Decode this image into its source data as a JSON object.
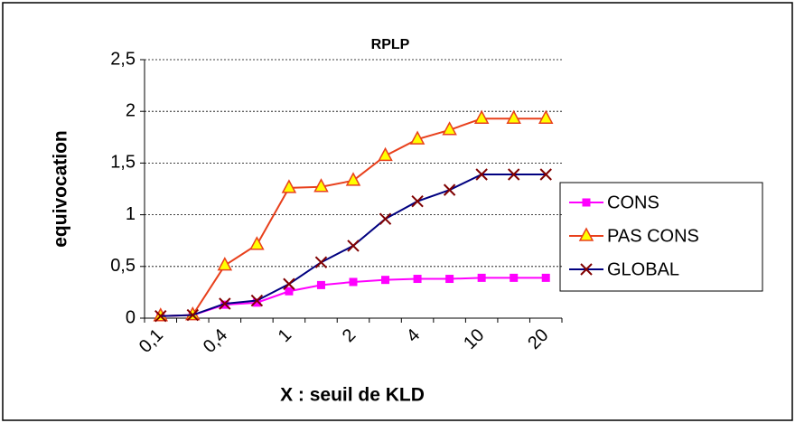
{
  "chart_data": {
    "type": "line",
    "title": "RPLP",
    "x_label": "X : seuil de KLD",
    "y_label": "equivocation",
    "categories": [
      "0,1",
      null,
      "0,4",
      null,
      "1",
      null,
      "2",
      null,
      "4",
      null,
      "10",
      null,
      "20"
    ],
    "series": [
      {
        "name": "CONS",
        "color": "#ff00ff",
        "marker": "square",
        "marker_color": "#ff00ff",
        "values": [
          0.02,
          0.03,
          0.13,
          0.15,
          0.26,
          0.32,
          0.35,
          0.37,
          0.38,
          0.38,
          0.39,
          0.39,
          0.39
        ]
      },
      {
        "name": "PAS CONS",
        "color": "#e8401c",
        "marker": "triangle",
        "marker_color": "#ffff00",
        "values": [
          0.02,
          0.03,
          0.51,
          0.71,
          1.26,
          1.27,
          1.33,
          1.57,
          1.73,
          1.82,
          1.93,
          1.93,
          1.93
        ]
      },
      {
        "name": "GLOBAL",
        "color": "#000080",
        "marker": "x",
        "marker_color": "#800000",
        "values": [
          0.02,
          0.03,
          0.14,
          0.17,
          0.33,
          0.54,
          0.7,
          0.96,
          1.13,
          1.24,
          1.39,
          1.39,
          1.39
        ]
      }
    ],
    "ylim": [
      0,
      2.5
    ],
    "yticks": [
      0,
      {
        "value": 0.5,
        "label": "0,5"
      },
      1,
      {
        "value": 1.5,
        "label": "1,5"
      },
      2,
      {
        "value": 2.5,
        "label": "2,5"
      }
    ],
    "grid": true,
    "legend": "right"
  }
}
